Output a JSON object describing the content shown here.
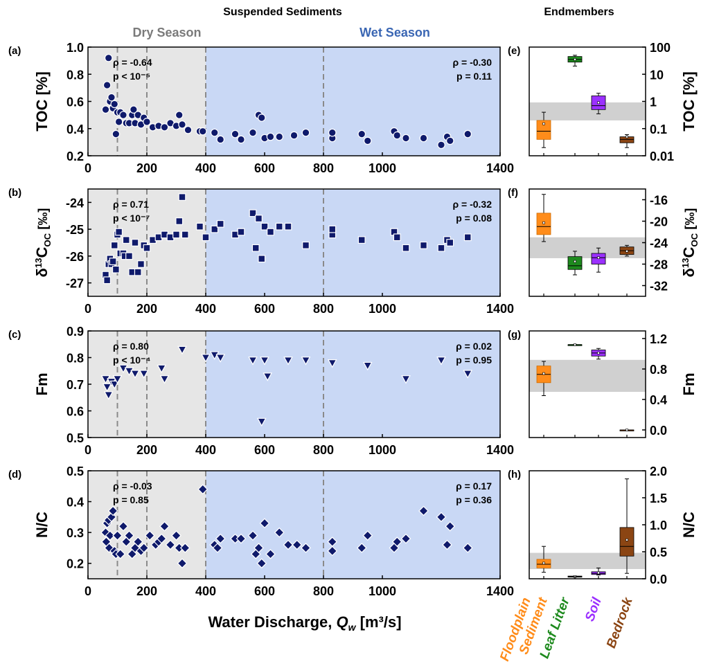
{
  "header": {
    "suspended_title": "Suspended Sediments",
    "endmembers_title": "Endmembers",
    "dry_season": "Dry Season",
    "wet_season": "Wet Season"
  },
  "x_axis": {
    "label_main": "Water Discharge, ",
    "label_var": "Q",
    "label_sub": "w",
    "label_units": " [m³/s]",
    "ticks": [
      "0",
      "200",
      "400",
      "600",
      "800",
      "1000",
      "1400"
    ]
  },
  "endmember_labels": {
    "floodplain_line1": "Floodplain",
    "floodplain_line2": "Sediment",
    "leaf": "Leaf Litter",
    "soil": "Soil",
    "bedrock": "Bedrock"
  },
  "colors": {
    "dry_bg": "#e6e6e6",
    "wet_bg": "#c9d8f5",
    "marker": "#0f1a6b",
    "dry_text": "#7a7a7a",
    "wet_text": "#3a66b3",
    "floodplain": "#ff8c1a",
    "leaf": "#1e8a1e",
    "soil": "#9b30ff",
    "bedrock": "#8b4513",
    "band": "#d0d0d0"
  },
  "chart_data": [
    {
      "type": "scatter",
      "panel": "(a)",
      "ylabel": "TOC [%]",
      "ylim": [
        0.2,
        1.0
      ],
      "yticks": [
        "0.2",
        "0.4",
        "0.6",
        "0.8",
        "1.0"
      ],
      "xlim": [
        0,
        1400
      ],
      "marker": "circle",
      "dry_stats": [
        "ρ = -0.64",
        "p < 10⁻⁵"
      ],
      "wet_stats": [
        "ρ = -0.30",
        "p = 0.11"
      ],
      "x": [
        60,
        65,
        70,
        75,
        80,
        85,
        90,
        95,
        100,
        105,
        110,
        120,
        130,
        140,
        150,
        155,
        160,
        170,
        180,
        190,
        200,
        220,
        240,
        260,
        280,
        300,
        310,
        320,
        340,
        380,
        390,
        430,
        450,
        500,
        520,
        560,
        580,
        590,
        600,
        620,
        650,
        700,
        740,
        830,
        830,
        930,
        950,
        1040,
        1050,
        1080,
        1140,
        1200,
        1220,
        1230,
        1290
      ],
      "y": [
        0.54,
        0.72,
        0.92,
        0.6,
        0.63,
        0.55,
        0.58,
        0.36,
        0.52,
        0.45,
        0.52,
        0.5,
        0.44,
        0.44,
        0.5,
        0.54,
        0.44,
        0.5,
        0.43,
        0.48,
        0.45,
        0.41,
        0.42,
        0.41,
        0.44,
        0.42,
        0.5,
        0.43,
        0.39,
        0.38,
        0.38,
        0.37,
        0.32,
        0.36,
        0.32,
        0.37,
        0.5,
        0.48,
        0.33,
        0.34,
        0.34,
        0.35,
        0.37,
        0.33,
        0.37,
        0.36,
        0.31,
        0.38,
        0.35,
        0.33,
        0.33,
        0.28,
        0.34,
        0.31,
        0.36
      ]
    },
    {
      "type": "scatter",
      "panel": "(b)",
      "ylabel_main": "δ",
      "ylabel_sup": "13",
      "ylabel_rest": "C",
      "ylabel_sub": "OC",
      "ylabel_units": " [‰]",
      "ylim": [
        -27.5,
        -23.5
      ],
      "yticks": [
        "-27",
        "-26",
        "-25",
        "-24"
      ],
      "xlim": [
        0,
        1400
      ],
      "marker": "square",
      "dry_stats": [
        "ρ = 0.71",
        "p < 10⁻⁷"
      ],
      "wet_stats": [
        "ρ = -0.32",
        "p = 0.08"
      ],
      "x": [
        60,
        65,
        70,
        75,
        80,
        85,
        90,
        95,
        100,
        105,
        110,
        120,
        125,
        130,
        140,
        150,
        160,
        170,
        180,
        190,
        200,
        220,
        240,
        260,
        280,
        300,
        310,
        320,
        330,
        380,
        400,
        430,
        450,
        500,
        520,
        560,
        570,
        580,
        590,
        600,
        620,
        650,
        680,
        740,
        830,
        830,
        930,
        1040,
        1050,
        1080,
        1140,
        1200,
        1220,
        1230,
        1290
      ],
      "y": [
        -26.7,
        -26.9,
        -26.3,
        -26.1,
        -26.3,
        -26.2,
        -25.6,
        -26.5,
        -25.2,
        -25.1,
        -25.9,
        -25.9,
        -26.0,
        -25.4,
        -26.0,
        -26.6,
        -25.5,
        -26.6,
        -26.3,
        -25.6,
        -25.7,
        -25.4,
        -25.3,
        -25.2,
        -25.3,
        -25.2,
        -24.7,
        -23.8,
        -25.2,
        -24.9,
        -25.3,
        -25.0,
        -24.8,
        -25.2,
        -25.1,
        -24.4,
        -25.7,
        -24.6,
        -26.1,
        -24.9,
        -25.1,
        -24.9,
        -24.9,
        -25.6,
        -25.2,
        -25.0,
        -25.4,
        -25.1,
        -25.3,
        -25.7,
        -25.6,
        -25.7,
        -25.4,
        -25.5,
        -25.3
      ]
    },
    {
      "type": "scatter",
      "panel": "(c)",
      "ylabel": "Fm",
      "ylim": [
        0.5,
        0.9
      ],
      "yticks": [
        "0.5",
        "0.6",
        "0.7",
        "0.8",
        "0.9"
      ],
      "xlim": [
        0,
        1400
      ],
      "marker": "triangle-down",
      "dry_stats": [
        "ρ = 0.80",
        "p < 10⁻⁴"
      ],
      "wet_stats": [
        "ρ = 0.02",
        "p = 0.95"
      ],
      "x": [
        60,
        65,
        70,
        80,
        90,
        100,
        120,
        140,
        160,
        190,
        250,
        260,
        320,
        400,
        430,
        450,
        560,
        590,
        600,
        610,
        680,
        740,
        830,
        950,
        1080,
        1200,
        1290
      ],
      "y": [
        0.72,
        0.69,
        0.66,
        0.71,
        0.7,
        0.72,
        0.76,
        0.75,
        0.74,
        0.74,
        0.76,
        0.72,
        0.83,
        0.8,
        0.81,
        0.8,
        0.79,
        0.56,
        0.79,
        0.73,
        0.79,
        0.79,
        0.78,
        0.77,
        0.72,
        0.79,
        0.74
      ]
    },
    {
      "type": "scatter",
      "panel": "(d)",
      "ylabel": "N/C",
      "ylim": [
        0.15,
        0.5
      ],
      "yticks": [
        "0.2",
        "0.3",
        "0.4",
        "0.5"
      ],
      "xlim": [
        0,
        1400
      ],
      "marker": "diamond",
      "dry_stats": [
        "ρ = -0.03",
        "p = 0.85"
      ],
      "wet_stats": [
        "ρ = 0.17",
        "p = 0.36"
      ],
      "x": [
        60,
        62,
        65,
        70,
        72,
        75,
        80,
        85,
        90,
        95,
        100,
        110,
        120,
        130,
        140,
        150,
        160,
        170,
        180,
        190,
        210,
        230,
        240,
        250,
        260,
        280,
        300,
        310,
        320,
        330,
        390,
        430,
        440,
        450,
        500,
        520,
        560,
        570,
        580,
        590,
        600,
        620,
        650,
        680,
        710,
        740,
        830,
        830,
        930,
        950,
        1040,
        1050,
        1080,
        1140,
        1200,
        1220,
        1230,
        1290
      ],
      "y": [
        0.3,
        0.27,
        0.33,
        0.34,
        0.25,
        0.29,
        0.35,
        0.37,
        0.24,
        0.23,
        0.29,
        0.23,
        0.32,
        0.27,
        0.29,
        0.23,
        0.25,
        0.27,
        0.24,
        0.25,
        0.29,
        0.26,
        0.27,
        0.28,
        0.32,
        0.26,
        0.29,
        0.25,
        0.2,
        0.25,
        0.44,
        0.26,
        0.25,
        0.28,
        0.28,
        0.28,
        0.29,
        0.23,
        0.25,
        0.2,
        0.33,
        0.23,
        0.3,
        0.26,
        0.26,
        0.25,
        0.24,
        0.27,
        0.25,
        0.29,
        0.25,
        0.27,
        0.28,
        0.37,
        0.35,
        0.26,
        0.32,
        0.25
      ]
    },
    {
      "type": "box",
      "panel": "(e)",
      "ylabel": "TOC [%]",
      "scale": "log",
      "ylim": [
        0.01,
        100
      ],
      "yticks": [
        "0.01",
        "0.1",
        "1",
        "10",
        "100"
      ],
      "band": [
        0.2,
        0.92
      ],
      "categories": [
        "Floodplain Sediment",
        "Leaf Litter",
        "Soil",
        "Bedrock"
      ],
      "boxes": [
        {
          "wmin": 0.02,
          "q1": 0.04,
          "median": 0.08,
          "q3": 0.2,
          "wmax": 0.4,
          "mean": 0.15
        },
        {
          "wmin": 20,
          "q1": 28,
          "median": 35,
          "q3": 45,
          "wmax": 50,
          "mean": 35
        },
        {
          "wmin": 0.35,
          "q1": 0.5,
          "median": 0.7,
          "q3": 1.6,
          "wmax": 2.0,
          "mean": 0.9
        },
        {
          "wmin": 0.02,
          "q1": 0.03,
          "median": 0.04,
          "q3": 0.05,
          "wmax": 0.06,
          "mean": 0.05
        }
      ]
    },
    {
      "type": "box",
      "panel": "(f)",
      "ylabel_main": "δ",
      "ylabel_sup": "13",
      "ylabel_rest": "C",
      "ylabel_sub": "OC",
      "ylabel_units": " [‰]",
      "ylim": [
        -34,
        -14
      ],
      "yticks": [
        "-32",
        "-28",
        "-24",
        "-20",
        "-16"
      ],
      "band": [
        -26.9,
        -23.0
      ],
      "categories": [
        "Floodplain Sediment",
        "Leaf Litter",
        "Soil",
        "Bedrock"
      ],
      "boxes": [
        {
          "wmin": -23.8,
          "q1": -22.5,
          "median": -21.0,
          "q3": -18.5,
          "wmax": -15.0,
          "mean": -20.3
        },
        {
          "wmin": -30.0,
          "q1": -29.0,
          "median": -28.3,
          "q3": -26.6,
          "wmax": -25.6,
          "mean": -27.5
        },
        {
          "wmin": -29.5,
          "q1": -28.0,
          "median": -26.8,
          "q3": -26.0,
          "wmax": -25.0,
          "mean": -26.8
        },
        {
          "wmin": -26.5,
          "q1": -26.2,
          "median": -25.5,
          "q3": -24.8,
          "wmax": -24.5,
          "mean": -25.6
        }
      ]
    },
    {
      "type": "box",
      "panel": "(g)",
      "ylabel": "Fm",
      "ylim": [
        -0.1,
        1.3
      ],
      "yticks": [
        "0.0",
        "0.4",
        "0.8",
        "1.2"
      ],
      "band": [
        0.5,
        0.92
      ],
      "categories": [
        "Floodplain Sediment",
        "Leaf Litter",
        "Soil",
        "Bedrock"
      ],
      "boxes": [
        {
          "wmin": 0.45,
          "q1": 0.62,
          "median": 0.73,
          "q3": 0.84,
          "wmax": 0.9,
          "mean": 0.74
        },
        {
          "wmin": 1.12,
          "q1": 1.12,
          "median": 1.12,
          "q3": 1.12,
          "wmax": 1.12,
          "mean": 1.12
        },
        {
          "wmin": 0.93,
          "q1": 0.97,
          "median": 1.01,
          "q3": 1.05,
          "wmax": 1.07,
          "mean": 1.01
        },
        {
          "wmin": 0.0,
          "q1": 0.0,
          "median": 0.0,
          "q3": 0.0,
          "wmax": 0.0,
          "mean": 0.0
        }
      ]
    },
    {
      "type": "box",
      "panel": "(h)",
      "ylabel": "N/C",
      "ylim": [
        0,
        2.0
      ],
      "yticks": [
        "0.0",
        "0.5",
        "1.0",
        "1.5",
        "2.0"
      ],
      "band": [
        0.18,
        0.48
      ],
      "categories": [
        "Floodplain Sediment",
        "Leaf Litter",
        "Soil",
        "Bedrock"
      ],
      "boxes": [
        {
          "wmin": 0.12,
          "q1": 0.2,
          "median": 0.27,
          "q3": 0.36,
          "wmax": 0.6,
          "mean": 0.29
        },
        {
          "wmin": 0.03,
          "q1": 0.03,
          "median": 0.04,
          "q3": 0.05,
          "wmax": 0.05,
          "mean": 0.04
        },
        {
          "wmin": 0.07,
          "q1": 0.08,
          "median": 0.1,
          "q3": 0.13,
          "wmax": 0.2,
          "mean": 0.11
        },
        {
          "wmin": 0.1,
          "q1": 0.42,
          "median": 0.6,
          "q3": 0.95,
          "wmax": 1.85,
          "mean": 0.72
        }
      ]
    }
  ]
}
